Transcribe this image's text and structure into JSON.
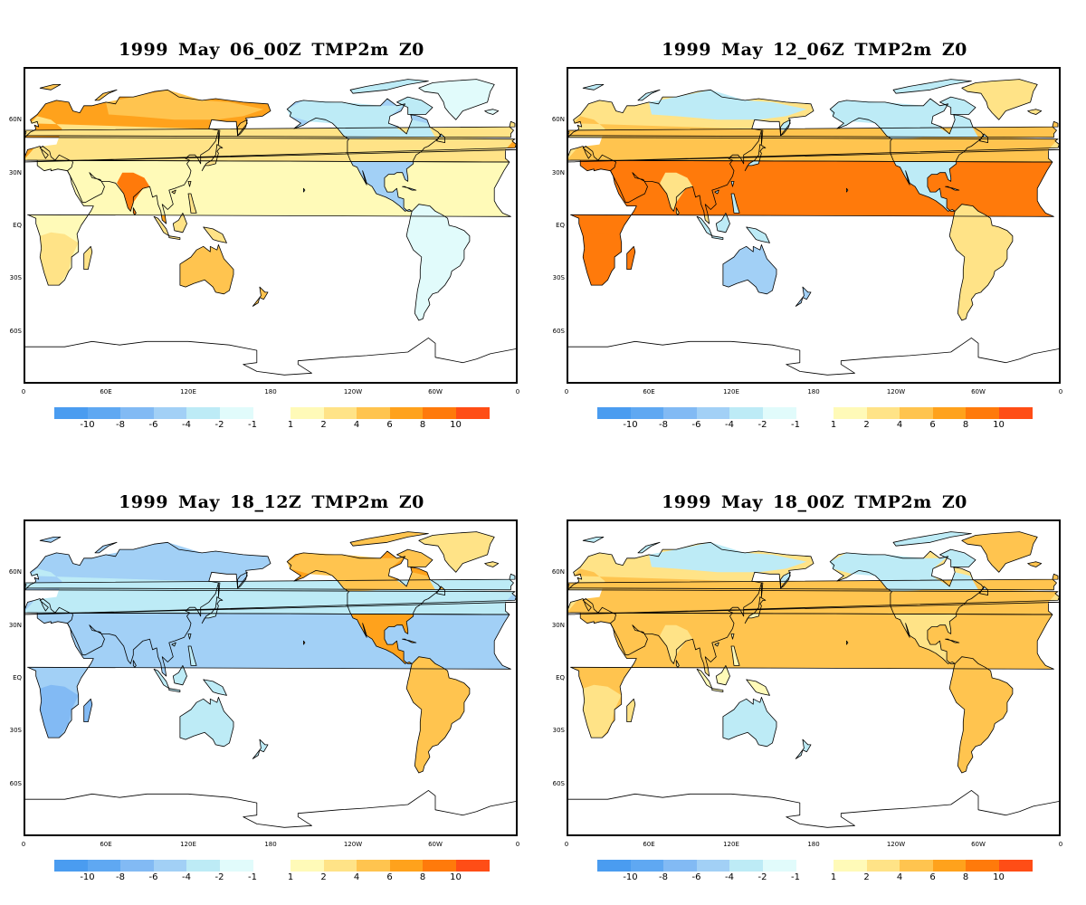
{
  "panels": [
    {
      "title": "1999 May 06_00Z TMP2m Z0",
      "anomaly": {
        "eurasia": 6,
        "india": 8,
        "westeurope": 2,
        "northafrica": 1,
        "southafrica": 2,
        "australia": 5,
        "seasia": 3,
        "siberia": 4,
        "northamerica": -4,
        "canada": -3,
        "southamerica": -1,
        "greenland": -1
      }
    },
    {
      "title": "1999 May 12_06Z TMP2m Z0",
      "anomaly": {
        "eurasia": 2,
        "india": 3,
        "westeurope": 5,
        "northafrica": 9,
        "southafrica": 8,
        "australia": -4,
        "seasia": -2,
        "siberia": -2,
        "northamerica": -2,
        "canada": -2,
        "southamerica": 2,
        "greenland": 3
      }
    },
    {
      "title": "1999 May 18_12Z TMP2m Z0",
      "anomaly": {
        "eurasia": -5,
        "india": -4,
        "westeurope": -3,
        "northafrica": -5,
        "southafrica": -6,
        "australia": -2,
        "seasia": -2,
        "siberia": -4,
        "northamerica": 7,
        "canada": 5,
        "southamerica": 5,
        "greenland": 2
      }
    },
    {
      "title": "1999 May 18_00Z TMP2m Z0",
      "anomaly": {
        "eurasia": 2,
        "india": 3,
        "westeurope": 4,
        "northafrica": 4,
        "southafrica": 3,
        "australia": -2,
        "seasia": 1,
        "siberia": -2,
        "northamerica": 2,
        "canada": -2,
        "southamerica": 5,
        "greenland": 4
      }
    }
  ],
  "lat_ticks": [
    "60N",
    "30N",
    "EQ",
    "30S",
    "60S"
  ],
  "lon_ticks": [
    "0",
    "60E",
    "120E",
    "180",
    "120W",
    "60W",
    "0"
  ],
  "colorbar": {
    "negative_colors": [
      "#4a9cf0",
      "#5fa8f2",
      "#82baf4",
      "#a2d0f6",
      "#bdebf6",
      "#e1fbfb"
    ],
    "positive_colors": [
      "#fffab8",
      "#ffe387",
      "#ffc44f",
      "#ffa21c",
      "#ff7a0b",
      "#ff4d16"
    ],
    "negative_labels": [
      "-10",
      "-8",
      "-6",
      "-4",
      "-2",
      "-1"
    ],
    "positive_labels": [
      "1",
      "2",
      "4",
      "6",
      "8",
      "10"
    ]
  }
}
